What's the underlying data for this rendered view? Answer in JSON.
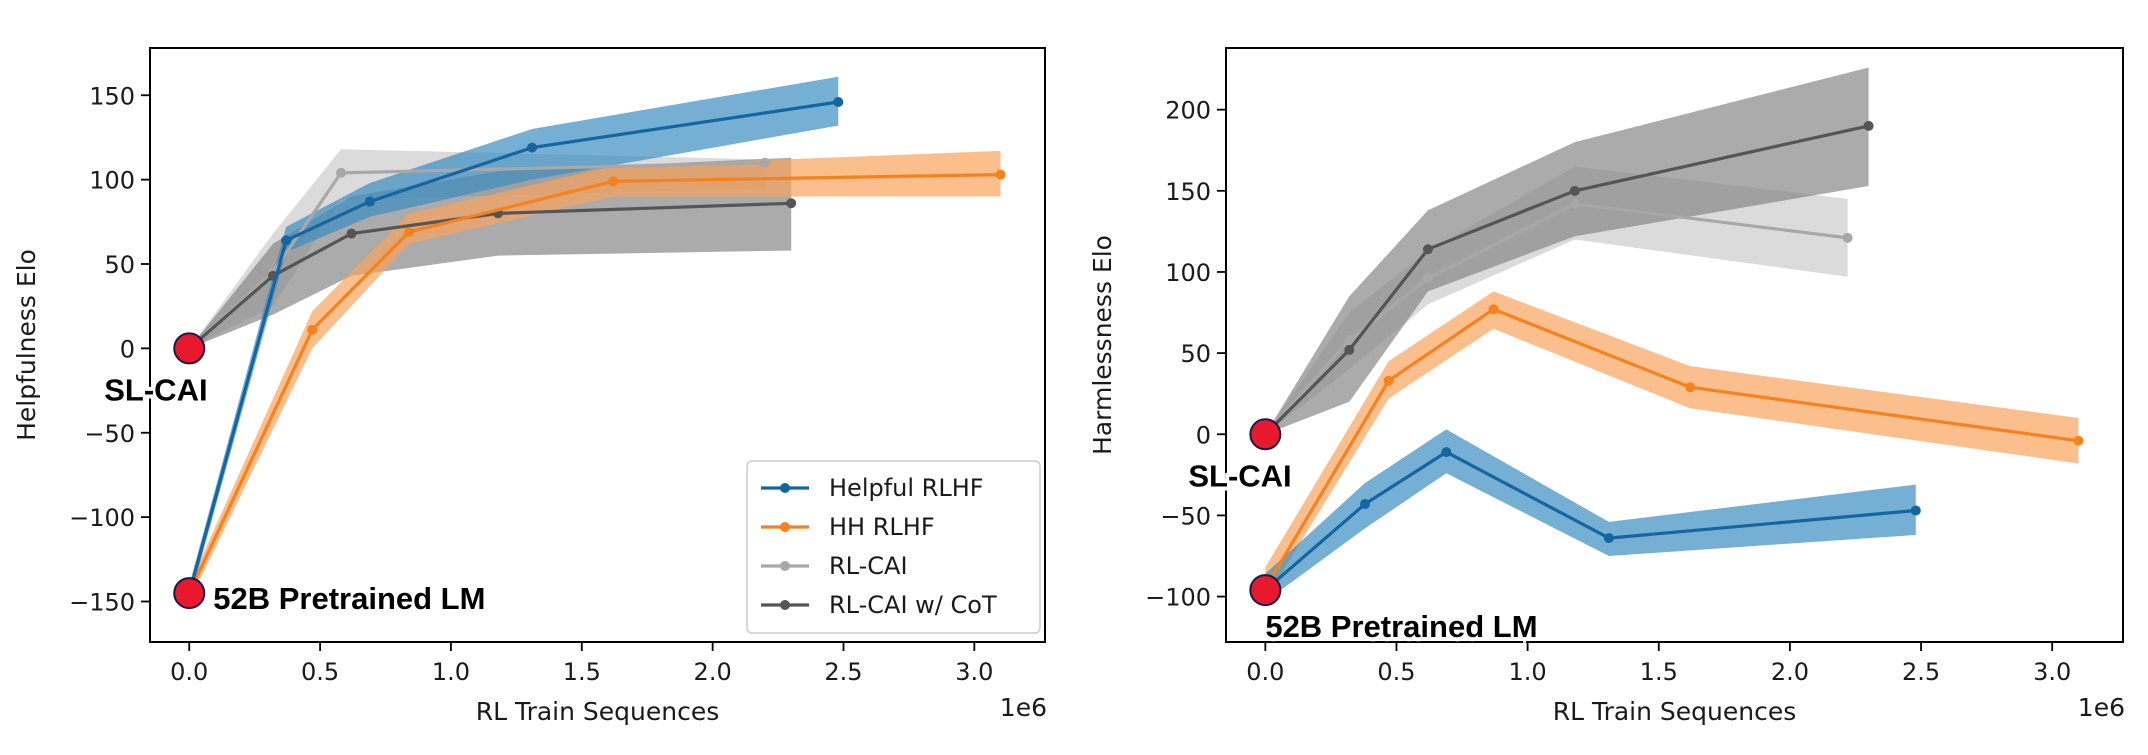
{
  "chart_data": [
    {
      "type": "line",
      "panel": "left",
      "xlabel": "RL Train Sequences",
      "ylabel": "Helpfulness Elo",
      "x_multiplier_label": "1e6",
      "xlim": [
        -0.15,
        3.27
      ],
      "ylim": [
        -174,
        178
      ],
      "xticks": [
        0.0,
        0.5,
        1.0,
        1.5,
        2.0,
        2.5,
        3.0
      ],
      "xtick_labels": [
        "0.0",
        "0.5",
        "1.0",
        "1.5",
        "2.0",
        "2.5",
        "3.0"
      ],
      "yticks": [
        150,
        100,
        50,
        0,
        -50,
        -100,
        -150
      ],
      "ytick_labels": [
        "150",
        "100",
        "50",
        "0",
        "−50",
        "−100",
        "−150"
      ],
      "legend": {
        "placement": "lower-right",
        "entries": [
          "Helpful RLHF",
          "HH RLHF",
          "RL-CAI",
          "RL-CAI w/ CoT"
        ]
      },
      "series": [
        {
          "name": "RL-CAI",
          "color": "#a8a8a8",
          "band_color": "#c7c7c7",
          "band_opacity": 0.65,
          "x": [
            0.0,
            0.32,
            0.58,
            2.2
          ],
          "y": [
            0,
            45,
            104,
            110
          ],
          "lower": [
            0,
            25,
            88,
            95
          ],
          "upper": [
            0,
            68,
            118,
            112
          ]
        },
        {
          "name": "RL-CAI w/ CoT",
          "color": "#555555",
          "band_color": "#888888",
          "band_opacity": 0.7,
          "x": [
            0.0,
            0.32,
            0.62,
            1.18,
            2.3
          ],
          "y": [
            0,
            43,
            68,
            80,
            86
          ],
          "lower": [
            0,
            20,
            43,
            55,
            58
          ],
          "upper": [
            0,
            62,
            90,
            105,
            113
          ]
        },
        {
          "name": "HH RLHF",
          "color": "#f5821f",
          "band_color": "#f9a35c",
          "band_opacity": 0.7,
          "x": [
            0.0,
            0.47,
            0.84,
            1.62,
            3.1
          ],
          "y": [
            -145,
            11,
            69,
            99,
            103
          ],
          "lower": [
            -150,
            0,
            62,
            90,
            90
          ],
          "upper": [
            -140,
            22,
            80,
            108,
            117
          ]
        },
        {
          "name": "Helpful RLHF",
          "color": "#1565a0",
          "band_color": "#3b8dc0",
          "band_opacity": 0.7,
          "x": [
            0.0,
            0.37,
            0.69,
            1.31,
            2.48
          ],
          "y": [
            -145,
            64,
            87,
            119,
            146
          ],
          "lower": [
            -150,
            57,
            78,
            100,
            132
          ],
          "upper": [
            -140,
            72,
            98,
            130,
            161
          ]
        }
      ],
      "markers": [
        {
          "label": "SL-CAI",
          "x": 0.0,
          "y": 0
        },
        {
          "label": "52B Pretrained LM",
          "x": 0.0,
          "y": -145
        }
      ]
    },
    {
      "type": "line",
      "panel": "right",
      "xlabel": "RL Train Sequences",
      "ylabel": "Harmlessness Elo",
      "x_multiplier_label": "1e6",
      "xlim": [
        -0.15,
        3.27
      ],
      "ylim": [
        -128,
        238
      ],
      "xticks": [
        0.0,
        0.5,
        1.0,
        1.5,
        2.0,
        2.5,
        3.0
      ],
      "xtick_labels": [
        "0.0",
        "0.5",
        "1.0",
        "1.5",
        "2.0",
        "2.5",
        "3.0"
      ],
      "yticks": [
        200,
        150,
        100,
        50,
        0,
        -50,
        -100
      ],
      "ytick_labels": [
        "200",
        "150",
        "100",
        "50",
        "0",
        "−50",
        "−100"
      ],
      "series": [
        {
          "name": "RL-CAI",
          "color": "#a8a8a8",
          "band_color": "#c7c7c7",
          "band_opacity": 0.65,
          "x": [
            0.0,
            0.32,
            0.62,
            1.18,
            2.22
          ],
          "y": [
            0,
            58,
            96,
            142,
            121
          ],
          "lower": [
            0,
            40,
            80,
            120,
            97
          ],
          "upper": [
            0,
            75,
            113,
            165,
            145
          ]
        },
        {
          "name": "RL-CAI w/ CoT",
          "color": "#555555",
          "band_color": "#888888",
          "band_opacity": 0.7,
          "x": [
            0.0,
            0.32,
            0.62,
            1.18,
            2.3
          ],
          "y": [
            0,
            52,
            114,
            150,
            190
          ],
          "lower": [
            0,
            20,
            88,
            122,
            153
          ],
          "upper": [
            0,
            85,
            138,
            180,
            226
          ]
        },
        {
          "name": "HH RLHF",
          "color": "#f5821f",
          "band_color": "#f9a35c",
          "band_opacity": 0.7,
          "x": [
            0.0,
            0.47,
            0.87,
            1.62,
            3.1
          ],
          "y": [
            -95,
            33,
            77,
            29,
            -4
          ],
          "lower": [
            -102,
            22,
            65,
            16,
            -18
          ],
          "upper": [
            -82,
            45,
            88,
            42,
            10
          ]
        },
        {
          "name": "Helpful RLHF",
          "color": "#1565a0",
          "band_color": "#3b8dc0",
          "band_opacity": 0.7,
          "x": [
            0.0,
            0.38,
            0.69,
            1.31,
            2.48
          ],
          "y": [
            -96,
            -43,
            -11,
            -64,
            -47
          ],
          "lower": [
            -103,
            -58,
            -24,
            -75,
            -62
          ],
          "upper": [
            -86,
            -30,
            3,
            -54,
            -31
          ]
        }
      ],
      "markers": [
        {
          "label": "SL-CAI",
          "x": 0.0,
          "y": 0
        },
        {
          "label": "52B Pretrained LM",
          "x": 0.0,
          "y": -96
        }
      ]
    }
  ]
}
